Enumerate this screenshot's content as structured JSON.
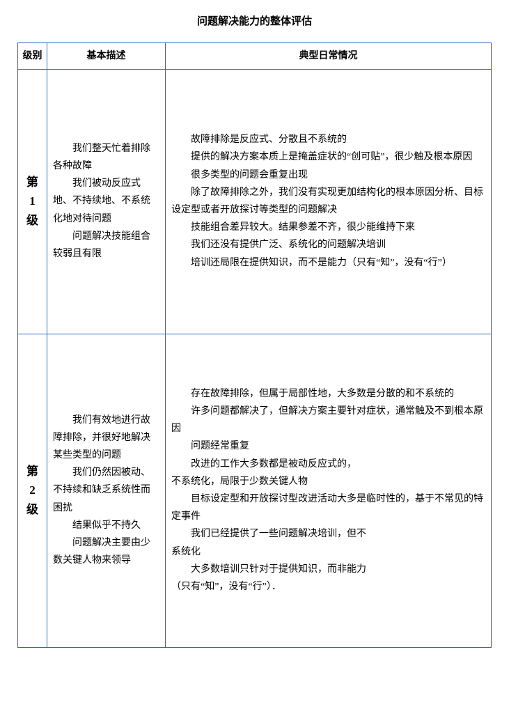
{
  "title": "问题解决能力的整体评估",
  "headers": {
    "level": "级别",
    "desc": "基本描述",
    "typical": "典型日常情况"
  },
  "rows": [
    {
      "level_chars": [
        "第",
        "1",
        "级"
      ],
      "desc": [
        "我们整天忙着排除各种故障",
        "我们被动反应式地、不持续地、不系统化地对待问题",
        "问题解决技能组合较弱且有限"
      ],
      "typical": [
        "故障排除是反应式、分散且不系统的",
        "提供的解决方案本质上是掩盖症状的“创可贴”，很少触及根本原因",
        "很多类型的问题会重复出现",
        "除了故障排除之外，我们没有实现更加结构化的根本原因分析、目标设定型或者开放探讨等类型的问题解决",
        "技能组合差异较大。结果参差不齐，很少能维持下来",
        "我们还没有提供广泛、系统化的问题解决培训",
        "培训还局限在提供知识，而不是能力（只有“知”，没有“行”）"
      ]
    },
    {
      "level_chars": [
        "第",
        "2",
        "级"
      ],
      "desc": [
        "我们有效地进行故障排除，并很好地解决某些类型的问题",
        "我们仍然因被动、不持续和缺乏系统性而困扰",
        "结果似乎不持久",
        "问题解决主要由少数关键人物来领导"
      ],
      "typical": [
        "存在故障排除，但属于局部性地，大多数是分散的和不系统的",
        "许多问题都解决了，但解决方案主要针对症状，通常触及不到根本原因",
        "问题经常重复",
        "改进的工作大多数都是被动反应式的，|不系统化，局限于少数关键人物",
        "目标设定型和开放探讨型改进活动大多是临时性的，基于不常见的特定事件",
        "我们已经提供了一些问题解决培训，但不|系统化",
        "大多数培训只针对于提供知识，而非能力|（只有“知”，没有“行”）．"
      ]
    }
  ],
  "style": {
    "border_color": "#2a6db5",
    "text_color": "#000000",
    "background": "#ffffff",
    "font_family": "SimSun",
    "title_fontsize": 15,
    "header_fontsize": 14,
    "body_fontsize": 14,
    "level_fontsize": 17
  }
}
